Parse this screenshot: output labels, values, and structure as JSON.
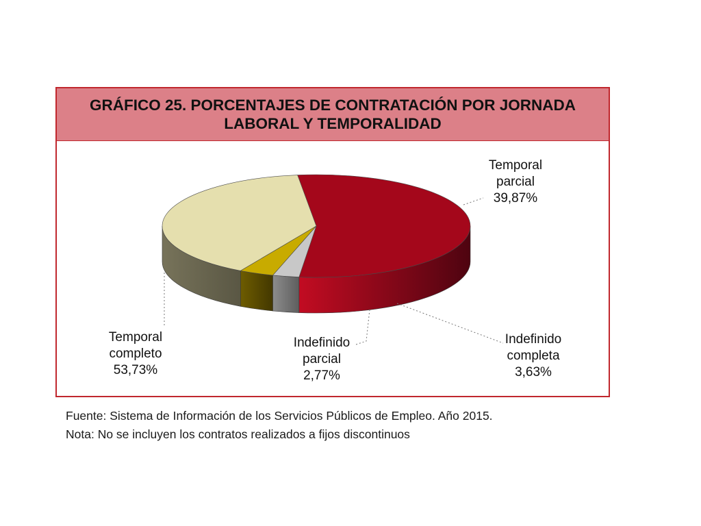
{
  "chart_data": {
    "type": "pie",
    "title": "GRÁFICO 25. PORCENTAJES DE CONTRATACIÓN POR JORNADA LABORAL Y TEMPORALIDAD",
    "slices": [
      {
        "label_lines": [
          "Temporal",
          "completo"
        ],
        "value": 53.73,
        "value_label": "53,73%",
        "color": "#a4071b"
      },
      {
        "label_lines": [
          "Indefinido",
          "parcial"
        ],
        "value": 2.77,
        "value_label": "2,77%",
        "color": "#c8c8c8"
      },
      {
        "label_lines": [
          "Indefinido",
          "completa"
        ],
        "value": 3.63,
        "value_label": "3,63%",
        "color": "#c8ab00"
      },
      {
        "label_lines": [
          "Temporal",
          "parcial"
        ],
        "value": 39.87,
        "value_label": "39,87%",
        "color": "#e5dfae"
      }
    ],
    "style": "3d"
  },
  "notes": {
    "source": "Fuente: Sistema de Información de los Servicios Públicos de Empleo. Año 2015.",
    "note": "Nota: No se incluyen los contratos realizados a fijos discontinuos"
  },
  "colors": {
    "frame": "#c0272d",
    "title_bar": "#dc8088"
  }
}
